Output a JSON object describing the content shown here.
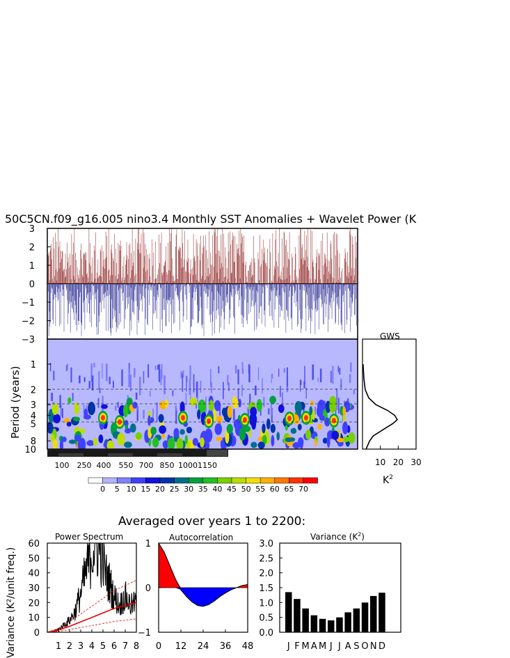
{
  "main_title": "50C5CN.f09_g16.005 nino3.4 Monthly SST Anomalies + Wavelet Power (K",
  "timeseries": {
    "y_ticks": [
      "3",
      "2",
      "1",
      "0",
      "−1",
      "−2",
      "−3"
    ]
  },
  "wavelet": {
    "ylabel": "Period (years)",
    "y_ticks": [
      "1",
      "2",
      "3",
      "4",
      "5",
      "8",
      "10"
    ],
    "x_ticks": [
      "100",
      "250",
      "400",
      "550",
      "700",
      "850",
      "1000",
      "1150"
    ],
    "colorbar_labels": [
      "0",
      "5",
      "10",
      "15",
      "20",
      "25",
      "30",
      "35",
      "40",
      "45",
      "50",
      "55",
      "60",
      "65",
      "70"
    ],
    "colors": [
      "#ffffff",
      "#b3b3ff",
      "#8080ff",
      "#4040ff",
      "#1010e0",
      "#0033aa",
      "#006f8a",
      "#00a040",
      "#22c022",
      "#77d000",
      "#bbdd00",
      "#f0e000",
      "#ffb000",
      "#ff7700",
      "#ff3300",
      "#ff0000"
    ]
  },
  "gws": {
    "title": "GWS",
    "x_ticks": [
      "10",
      "20",
      "30"
    ],
    "xlabel_base": "K",
    "xlabel_sup": "2"
  },
  "averaged_title": "Averaged over years 1 to 2200:",
  "power_spectrum": {
    "title": "Power Spectrum",
    "ylabel_visible": "Variance (K²/unit freq.)",
    "y_ticks": [
      "60",
      "50",
      "40",
      "30",
      "20",
      "10",
      "0"
    ],
    "x_ticks": [
      "1",
      "2",
      "3",
      "4",
      "5",
      "6",
      "7",
      "8"
    ]
  },
  "autocorrelation": {
    "title": "Autocorrelation",
    "y_ticks": [
      "1",
      "0",
      "−1"
    ],
    "x_ticks": [
      "0",
      "12",
      "24",
      "36",
      "48"
    ]
  },
  "variance_panel": {
    "title_base": "Variance (K",
    "title_sup": "2",
    "title_end": ")",
    "y_ticks": [
      "3.0",
      "2.5",
      "2.0",
      "1.5",
      "1.0",
      "0.5",
      "0.0"
    ],
    "months": [
      "J",
      "F",
      "M",
      "A",
      "M",
      "J",
      "J",
      "A",
      "S",
      "O",
      "N",
      "D"
    ]
  },
  "chart_data": [
    {
      "type": "line",
      "title": "50C5CN.f09_g16.005 nino3.4 Monthly SST Anomalies",
      "x_range": [
        0,
        1300
      ],
      "ylim": [
        -3,
        3
      ],
      "note_values": [
        0.8,
        -0.6,
        2.4,
        -2.0,
        1.2,
        -1.1,
        0.5,
        2.9,
        -2.6,
        1.7
      ]
    },
    {
      "type": "heatmap",
      "ylabel": "Period (years)",
      "x_ticks": [
        100,
        250,
        400,
        550,
        700,
        850,
        1000,
        1150
      ],
      "y_ticks": [
        1,
        2,
        3,
        4,
        5,
        8,
        10
      ],
      "colorbar_levels": [
        0,
        5,
        10,
        15,
        20,
        25,
        30,
        35,
        40,
        45,
        50,
        55,
        60,
        65,
        70
      ],
      "band_peak_period": 4.5
    },
    {
      "type": "line",
      "title": "GWS",
      "xlabel": "K2",
      "xlim": [
        0,
        30
      ],
      "period": [
        1,
        1.5,
        2,
        2.5,
        3,
        3.5,
        4,
        4.5,
        5,
        6,
        7,
        8,
        10
      ],
      "power": [
        0.3,
        0.8,
        1.5,
        3.5,
        7.5,
        14,
        18,
        19.5,
        17,
        11,
        6,
        4,
        2
      ]
    },
    {
      "type": "line",
      "title": "Power Spectrum",
      "xlim": [
        0,
        8
      ],
      "ylim": [
        0,
        60
      ],
      "x": [
        0.5,
        1,
        1.5,
        2,
        2.5,
        3,
        3.3,
        3.6,
        4,
        4.3,
        4.6,
        5,
        5.3,
        5.6,
        6,
        6.5,
        7,
        7.5,
        8
      ],
      "y": [
        0.5,
        2,
        5,
        8,
        14,
        26,
        35,
        44,
        55,
        58,
        60,
        48,
        38,
        33,
        24,
        18,
        24,
        18,
        20
      ],
      "red_fit": [
        0,
        1.5,
        4,
        7,
        10,
        13,
        16,
        18,
        20
      ]
    },
    {
      "type": "area",
      "title": "Autocorrelation",
      "xlim": [
        0,
        48
      ],
      "ylim": [
        -1,
        1
      ],
      "x": [
        0,
        3,
        6,
        9,
        12,
        15,
        18,
        21,
        24,
        27,
        30,
        33,
        36,
        39,
        42,
        45,
        48
      ],
      "y": [
        1.0,
        0.8,
        0.5,
        0.2,
        -0.05,
        -0.2,
        -0.32,
        -0.4,
        -0.42,
        -0.38,
        -0.3,
        -0.2,
        -0.12,
        -0.05,
        0.0,
        0.05,
        0.07
      ]
    },
    {
      "type": "bar",
      "title": "Variance (K2)",
      "categories": [
        "J",
        "F",
        "M",
        "A",
        "M",
        "J",
        "J",
        "A",
        "S",
        "O",
        "N",
        "D"
      ],
      "values": [
        1.35,
        1.12,
        0.8,
        0.57,
        0.45,
        0.4,
        0.5,
        0.67,
        0.8,
        1.0,
        1.22,
        1.33
      ],
      "ylim": [
        0,
        3.0
      ]
    }
  ]
}
